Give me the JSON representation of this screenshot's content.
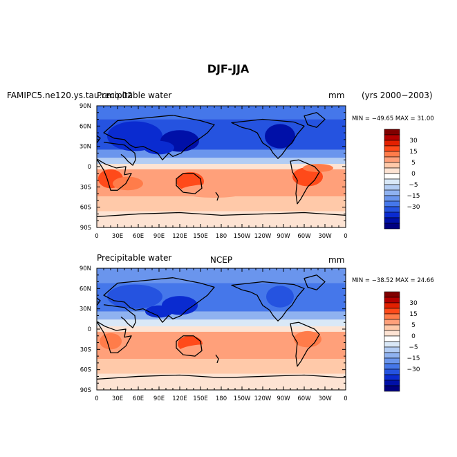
{
  "figure": {
    "title": "DJF-JJA",
    "case_label": "FAMIPC5.ne120.ys.tau.cmo.02",
    "years_label": "(yrs 2000−2003)"
  },
  "chart_data": [
    {
      "type": "heatmap",
      "title": "Precipitable water",
      "units": "mm",
      "center_label": "",
      "stats_text": "MIN = −49.65 MAX =  31.00",
      "min": -49.65,
      "max": 31.0,
      "x_ticks": [
        "0",
        "30E",
        "60E",
        "90E",
        "120E",
        "150E",
        "180",
        "150W",
        "120W",
        "90W",
        "60W",
        "30W",
        "0"
      ],
      "y_ticks": [
        "90N",
        "60N",
        "30N",
        "0",
        "30S",
        "60S",
        "90S"
      ],
      "xlim": [
        0,
        360
      ],
      "ylim": [
        -90,
        90
      ],
      "colorbar_labels": [
        "30",
        "15",
        "5",
        "0",
        "−5",
        "−15",
        "−30"
      ]
    },
    {
      "type": "heatmap",
      "title": "Precipitable water",
      "units": "mm",
      "center_label": "NCEP",
      "stats_text": "MIN = −38.52 MAX =  24.66",
      "min": -38.52,
      "max": 24.66,
      "x_ticks": [
        "0",
        "30E",
        "60E",
        "90E",
        "120E",
        "150E",
        "180",
        "150W",
        "120W",
        "90W",
        "60W",
        "30W",
        "0"
      ],
      "y_ticks": [
        "90N",
        "60N",
        "30N",
        "0",
        "30S",
        "60S",
        "90S"
      ],
      "xlim": [
        0,
        360
      ],
      "ylim": [
        -90,
        90
      ],
      "colorbar_labels": [
        "30",
        "15",
        "5",
        "0",
        "−5",
        "−15",
        "−30"
      ]
    }
  ],
  "colors": {
    "palette": [
      "#800000",
      "#b40000",
      "#e32000",
      "#ff4a1a",
      "#ff7c4a",
      "#ffa07a",
      "#ffc9a9",
      "#fde3d3",
      "#ffffff",
      "#d9e8f7",
      "#b3cdf4",
      "#8fb2f0",
      "#6a95ed",
      "#4577ea",
      "#2553e0",
      "#0a2bd0",
      "#0010a8",
      "#000080"
    ],
    "land": "#000000"
  }
}
